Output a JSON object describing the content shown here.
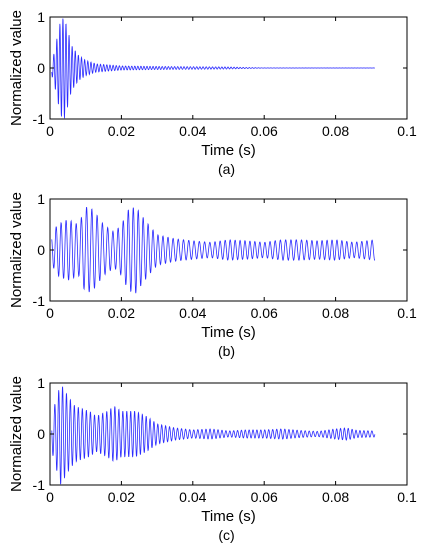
{
  "chart_data": [
    {
      "type": "line",
      "caption": "(a)",
      "xlabel": "Time (s)",
      "ylabel": "Normalized value",
      "xlim": [
        0,
        0.1
      ],
      "ylim": [
        -1,
        1
      ],
      "xticks": [
        "0",
        "0.02",
        "0.04",
        "0.06",
        "0.08",
        "0.1"
      ],
      "yticks": [
        "-1",
        "0",
        "1"
      ],
      "grid": false,
      "color": "#2b2bff",
      "series": [
        {
          "signal": {
            "duration": 0.091,
            "carrier_hz": 1150,
            "onset": 0.0005
          },
          "envelope": [
            [
              0.0,
              0.05
            ],
            [
              0.001,
              0.25
            ],
            [
              0.002,
              0.6
            ],
            [
              0.003,
              0.95
            ],
            [
              0.004,
              1.0
            ],
            [
              0.005,
              0.75
            ],
            [
              0.006,
              0.45
            ],
            [
              0.008,
              0.25
            ],
            [
              0.01,
              0.15
            ],
            [
              0.013,
              0.08
            ],
            [
              0.02,
              0.04
            ],
            [
              0.03,
              0.03
            ],
            [
              0.04,
              0.025
            ],
            [
              0.05,
              0.02
            ],
            [
              0.055,
              0.01
            ],
            [
              0.06,
              0.002
            ],
            [
              0.091,
              0.001
            ]
          ]
        }
      ]
    },
    {
      "type": "line",
      "caption": "(b)",
      "xlabel": "Time (s)",
      "ylabel": "Normalized value",
      "xlim": [
        0,
        0.1
      ],
      "ylim": [
        -1,
        1
      ],
      "xticks": [
        "0",
        "0.02",
        "0.04",
        "0.06",
        "0.08",
        "0.1"
      ],
      "yticks": [
        "-1",
        "0",
        "1"
      ],
      "grid": false,
      "color": "#2b2bff",
      "series": [
        {
          "signal": {
            "duration": 0.091,
            "carrier_hz": 700,
            "onset": 0.0005
          },
          "envelope": [
            [
              0.0,
              0.2
            ],
            [
              0.002,
              0.5
            ],
            [
              0.005,
              0.6
            ],
            [
              0.008,
              0.5
            ],
            [
              0.01,
              0.85
            ],
            [
              0.012,
              0.8
            ],
            [
              0.015,
              0.5
            ],
            [
              0.018,
              0.35
            ],
            [
              0.02,
              0.5
            ],
            [
              0.022,
              0.8
            ],
            [
              0.024,
              0.85
            ],
            [
              0.027,
              0.55
            ],
            [
              0.03,
              0.3
            ],
            [
              0.035,
              0.22
            ],
            [
              0.04,
              0.18
            ],
            [
              0.045,
              0.15
            ],
            [
              0.05,
              0.2
            ],
            [
              0.055,
              0.18
            ],
            [
              0.06,
              0.15
            ],
            [
              0.065,
              0.2
            ],
            [
              0.07,
              0.2
            ],
            [
              0.075,
              0.18
            ],
            [
              0.08,
              0.2
            ],
            [
              0.085,
              0.15
            ],
            [
              0.091,
              0.2
            ]
          ]
        }
      ]
    },
    {
      "type": "line",
      "caption": "(c)",
      "xlabel": "Time (s)",
      "ylabel": "Normalized value",
      "xlim": [
        0,
        0.1
      ],
      "ylim": [
        -1,
        1
      ],
      "xticks": [
        "0",
        "0.02",
        "0.04",
        "0.06",
        "0.08",
        "0.1"
      ],
      "yticks": [
        "-1",
        "0",
        "1"
      ],
      "grid": false,
      "color": "#2b2bff",
      "series": [
        {
          "signal": {
            "duration": 0.091,
            "carrier_hz": 900,
            "onset": 0.0005
          },
          "envelope": [
            [
              0.0,
              0.1
            ],
            [
              0.001,
              0.5
            ],
            [
              0.003,
              1.0
            ],
            [
              0.005,
              0.75
            ],
            [
              0.007,
              0.55
            ],
            [
              0.009,
              0.5
            ],
            [
              0.011,
              0.45
            ],
            [
              0.013,
              0.35
            ],
            [
              0.016,
              0.45
            ],
            [
              0.018,
              0.55
            ],
            [
              0.02,
              0.45
            ],
            [
              0.024,
              0.45
            ],
            [
              0.027,
              0.35
            ],
            [
              0.03,
              0.2
            ],
            [
              0.035,
              0.12
            ],
            [
              0.04,
              0.08
            ],
            [
              0.045,
              0.1
            ],
            [
              0.05,
              0.06
            ],
            [
              0.055,
              0.08
            ],
            [
              0.06,
              0.08
            ],
            [
              0.065,
              0.1
            ],
            [
              0.07,
              0.07
            ],
            [
              0.075,
              0.05
            ],
            [
              0.08,
              0.1
            ],
            [
              0.083,
              0.12
            ],
            [
              0.086,
              0.07
            ],
            [
              0.091,
              0.06
            ]
          ]
        }
      ]
    }
  ]
}
